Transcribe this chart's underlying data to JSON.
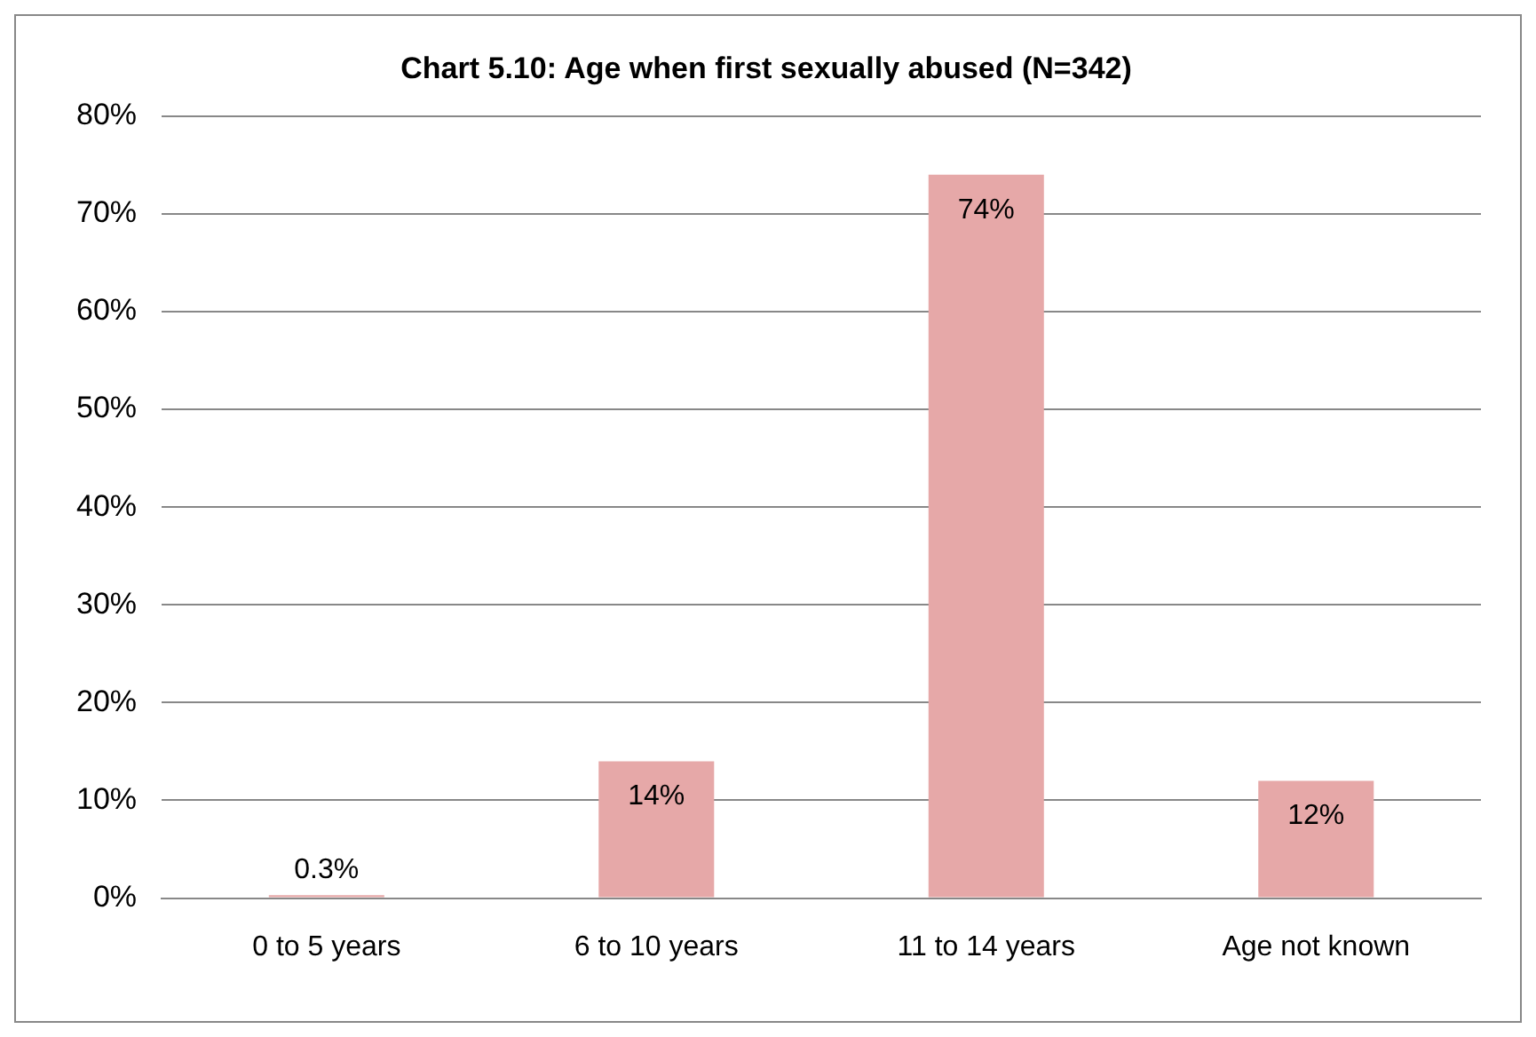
{
  "chart_data": {
    "type": "bar",
    "title": "Chart 5.10: Age when first sexually abused (N=342)",
    "categories": [
      "0 to 5 years",
      "6 to 10 years",
      "11 to 14 years",
      "Age not known"
    ],
    "values": [
      0.3,
      14,
      74,
      12
    ],
    "value_labels": [
      "0.3%",
      "14%",
      "74%",
      "12%"
    ],
    "color": "#e6a8a8",
    "ylim": [
      0,
      80
    ],
    "yticks": [
      {
        "value": 0,
        "label": "0%"
      },
      {
        "value": 10,
        "label": "10%"
      },
      {
        "value": 20,
        "label": "20%"
      },
      {
        "value": 30,
        "label": "30%"
      },
      {
        "value": 40,
        "label": "40%"
      },
      {
        "value": 50,
        "label": "50%"
      },
      {
        "value": 60,
        "label": "60%"
      },
      {
        "value": 70,
        "label": "70%"
      },
      {
        "value": 80,
        "label": "80%"
      }
    ],
    "grid": "y",
    "legend": false
  }
}
